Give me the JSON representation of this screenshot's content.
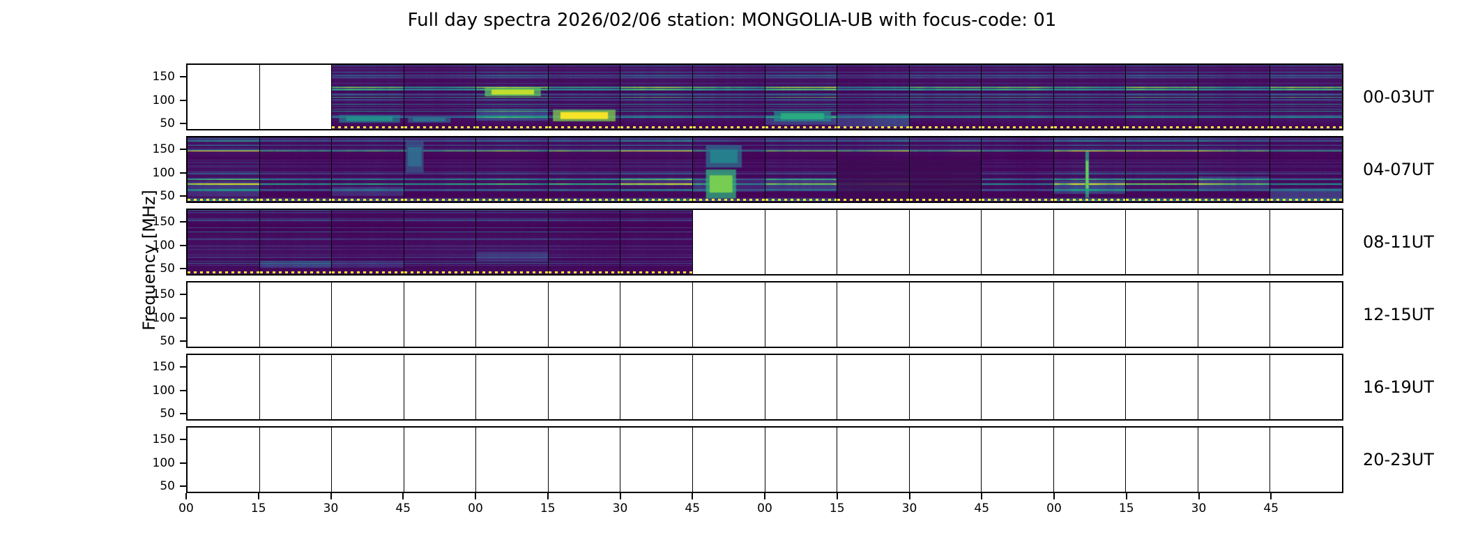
{
  "title": "Full day spectra 2026/02/06 station: MONGOLIA-UB with focus-code: 01",
  "ylabel": "Frequency [MHz]",
  "axis": {
    "yticks": [
      "150",
      "100",
      "50"
    ],
    "xticks": [
      "00",
      "15",
      "30",
      "45",
      "00",
      "15",
      "30",
      "45",
      "00",
      "15",
      "30",
      "45",
      "00",
      "15",
      "30",
      "45"
    ]
  },
  "rows": [
    {
      "label": "00-03UT",
      "filled": [
        0,
        0,
        1,
        1,
        1,
        1,
        1,
        1,
        1,
        1,
        1,
        1,
        1,
        1,
        1,
        1
      ]
    },
    {
      "label": "04-07UT",
      "filled": [
        1,
        1,
        1,
        1,
        1,
        1,
        1,
        1,
        1,
        1,
        1,
        1,
        1,
        1,
        1,
        1
      ]
    },
    {
      "label": "08-11UT",
      "filled": [
        1,
        1,
        1,
        1,
        1,
        1,
        1,
        0,
        0,
        0,
        0,
        0,
        0,
        0,
        0,
        0
      ]
    },
    {
      "label": "12-15UT",
      "filled": [
        0,
        0,
        0,
        0,
        0,
        0,
        0,
        0,
        0,
        0,
        0,
        0,
        0,
        0,
        0,
        0
      ]
    },
    {
      "label": "16-19UT",
      "filled": [
        0,
        0,
        0,
        0,
        0,
        0,
        0,
        0,
        0,
        0,
        0,
        0,
        0,
        0,
        0,
        0
      ]
    },
    {
      "label": "20-23UT",
      "filled": [
        0,
        0,
        0,
        0,
        0,
        0,
        0,
        0,
        0,
        0,
        0,
        0,
        0,
        0,
        0,
        0
      ]
    }
  ],
  "colors": {
    "colormap": "viridis",
    "background": "#ffffff",
    "frame": "#000000",
    "marker_line": "#f2e53c",
    "spectrogram_base": "#440154"
  },
  "chart_data": {
    "type": "heatmap",
    "subtype": "radio spectrogram grid of 15-minute panels",
    "title": "Full day spectra 2026/02/06 station: MONGOLIA-UB with focus-code: 01",
    "station": "MONGOLIA-UB",
    "date": "2026/02/06",
    "focus_code": "01",
    "ylabel": "Frequency [MHz]",
    "yticks": [
      50,
      100,
      150
    ],
    "ylim_mhz": [
      45,
      170
    ],
    "x_tick_labels_minutes": [
      "00",
      "15",
      "30",
      "45",
      "00",
      "15",
      "30",
      "45",
      "00",
      "15",
      "30",
      "45",
      "00",
      "15",
      "30",
      "45"
    ],
    "row_labels": [
      "00-03UT",
      "04-07UT",
      "08-11UT",
      "12-15UT",
      "16-19UT",
      "20-23UT"
    ],
    "panels_per_row": 16,
    "panel_duration_min": 15,
    "data_present": {
      "00-03UT": "empty 00:00-00:30; spectra from 00:30 to 04:00",
      "04-07UT": "all 16 panels contain spectra",
      "08-11UT": "spectra 08:00-09:45; remaining panels empty",
      "12-15UT": "all panels empty",
      "16-19UT": "all panels empty",
      "20-23UT": "all panels empty"
    },
    "colormap": "viridis",
    "bottom_marker": "yellow dotted line along bottom edge of every panel that contains data",
    "features": [
      {
        "row": 0,
        "panel": 4,
        "x": 0.12,
        "y": 0.36,
        "w": 0.78,
        "h": 0.13,
        "intensity": 0.92,
        "note": "bright green drifting burst ~100-115 MHz near 01:10 UT"
      },
      {
        "row": 0,
        "panel": 5,
        "x": 0.06,
        "y": 0.7,
        "w": 0.88,
        "h": 0.18,
        "intensity": 1.0,
        "note": "strong yellow-green emission ~55-75 MHz near 01:20-01:30 UT"
      },
      {
        "row": 0,
        "panel": 2,
        "x": 0.1,
        "y": 0.78,
        "w": 0.85,
        "h": 0.12,
        "intensity": 0.5,
        "note": "teal band ~55-70 MHz near 00:35 UT"
      },
      {
        "row": 0,
        "panel": 3,
        "x": 0.05,
        "y": 0.8,
        "w": 0.6,
        "h": 0.1,
        "intensity": 0.38
      },
      {
        "row": 0,
        "panel": 8,
        "x": 0.12,
        "y": 0.72,
        "w": 0.8,
        "h": 0.16,
        "intensity": 0.62,
        "note": "teal band ~60-75 MHz near 02:05 UT"
      },
      {
        "row": 1,
        "panel": 7,
        "x": 0.18,
        "y": 0.5,
        "w": 0.42,
        "h": 0.45,
        "intensity": 0.8,
        "note": "bright teal patch 50-90 MHz near 05:50 UT"
      },
      {
        "row": 1,
        "panel": 7,
        "x": 0.18,
        "y": 0.12,
        "w": 0.5,
        "h": 0.35,
        "intensity": 0.45
      },
      {
        "row": 1,
        "panel": 12,
        "x": 0.44,
        "y": 0.22,
        "w": 0.05,
        "h": 0.72,
        "intensity": 0.78,
        "note": "narrow vertical burst near 07:12 UT"
      },
      {
        "row": 1,
        "panel": 3,
        "x": 0.02,
        "y": 0.05,
        "w": 0.25,
        "h": 0.5,
        "intensity": 0.35
      },
      {
        "row": 1,
        "panel": 9,
        "x": 0.0,
        "y": 0.35,
        "w": 1.0,
        "h": 0.65,
        "type": "dark",
        "note": "quiet dark block 06:15-06:45 UT"
      },
      {
        "row": 1,
        "panel": 10,
        "x": 0.0,
        "y": 0.35,
        "w": 1.0,
        "h": 0.65,
        "type": "dark"
      }
    ]
  }
}
